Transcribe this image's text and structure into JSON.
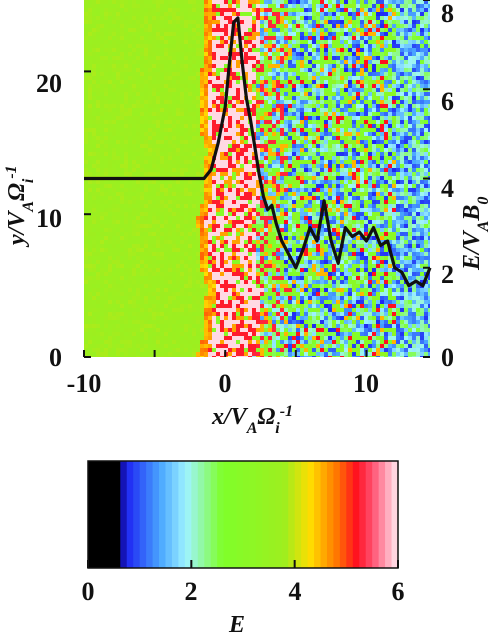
{
  "chart_data": [
    {
      "type": "heatmap",
      "xlabel": "x/VAΩi-1",
      "ylabel": "y/VAΩi-1",
      "y2label": "E/VAB0",
      "xlim": [
        -10,
        14.5
      ],
      "ylim": [
        0,
        25
      ],
      "y2lim": [
        0,
        8
      ],
      "xticks": [
        "-10",
        "0",
        "10"
      ],
      "yticks": [
        "0",
        "10",
        "20"
      ],
      "y2ticks": [
        "0",
        "2",
        "4",
        "6",
        "8"
      ],
      "heatmap_description_regions": [
        {
          "x_range": [
            -10,
            -1.5
          ],
          "E": 3.8
        },
        {
          "x_range": [
            -1.5,
            2
          ],
          "E": 5.5
        },
        {
          "x_range": [
            2,
            14.5
          ],
          "E": 1.8
        }
      ],
      "series": [
        {
          "axis": "right",
          "x": [
            -10,
            -8,
            -6,
            -4,
            -2.5,
            -1.5,
            -1,
            -0.5,
            0,
            0.3,
            0.6,
            0.9,
            1.2,
            1.5,
            1.8,
            2.1,
            2.4,
            2.7,
            3.0,
            3.3,
            3.6,
            4.0,
            4.5,
            5.0,
            5.5,
            6.0,
            6.5,
            7.0,
            7.5,
            8.0,
            8.5,
            9.0,
            9.5,
            10.0,
            10.5,
            11.0,
            11.5,
            12.0,
            12.5,
            13.0,
            13.5,
            14.0,
            14.5
          ],
          "y": [
            4.0,
            4.0,
            4.0,
            4.0,
            4.0,
            4.0,
            4.2,
            4.8,
            5.6,
            6.6,
            7.5,
            7.6,
            6.6,
            5.8,
            5.3,
            4.7,
            4.1,
            3.6,
            3.3,
            3.4,
            3.0,
            2.6,
            2.3,
            2.0,
            2.4,
            2.9,
            2.6,
            3.5,
            2.6,
            2.1,
            2.9,
            2.7,
            2.8,
            2.6,
            2.9,
            2.5,
            2.6,
            2.0,
            1.9,
            1.6,
            1.7,
            1.6,
            2.0
          ]
        }
      ]
    },
    {
      "type": "heatmap",
      "xlabel": "E",
      "ticks": [
        "0",
        "2",
        "4",
        "6"
      ],
      "range": [
        0,
        6
      ],
      "stops": [
        {
          "v": 0.0,
          "c": "#000000"
        },
        {
          "v": 0.65,
          "c": "#000000"
        },
        {
          "v": 0.7,
          "c": "#1a1af2"
        },
        {
          "v": 1.4,
          "c": "#4aa6ff"
        },
        {
          "v": 1.9,
          "c": "#9ff3ff"
        },
        {
          "v": 2.6,
          "c": "#7fff2a"
        },
        {
          "v": 3.8,
          "c": "#9eee1f"
        },
        {
          "v": 4.3,
          "c": "#ffdd00"
        },
        {
          "v": 4.8,
          "c": "#ff7a00"
        },
        {
          "v": 5.2,
          "c": "#ff1020"
        },
        {
          "v": 5.5,
          "c": "#ff5070"
        },
        {
          "v": 6.0,
          "c": "#ffe8f0"
        }
      ]
    }
  ],
  "colors": {
    "frame": "#111111",
    "curve": "#111111",
    "background": "#ffffff"
  }
}
